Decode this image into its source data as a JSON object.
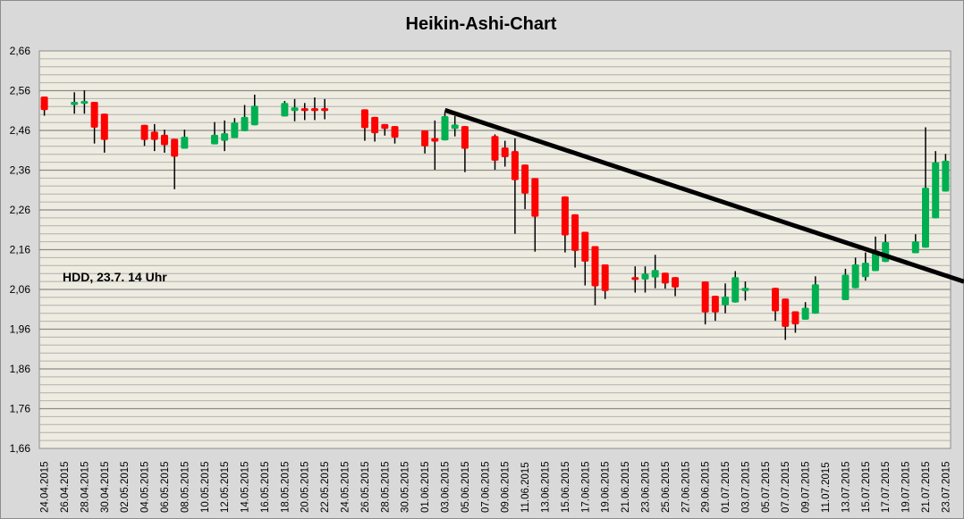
{
  "chart_data": {
    "type": "candlestick",
    "subtype": "heikin-ashi",
    "title": "Heikin-Ashi-Chart",
    "annotation": "HDD, 23.7. 14 Uhr",
    "xlabel": "",
    "ylabel": "",
    "ylim": [
      1.66,
      2.66
    ],
    "yticks": [
      "2,66",
      "2,56",
      "2,46",
      "2,36",
      "2,26",
      "2,16",
      "2,06",
      "1,96",
      "1,86",
      "1,76",
      "1,66"
    ],
    "ytick_values": [
      2.66,
      2.56,
      2.46,
      2.36,
      2.26,
      2.16,
      2.06,
      1.96,
      1.86,
      1.76,
      1.66
    ],
    "minor_grid_step": 0.02,
    "grid": true,
    "x_range": [
      "24.04.2015",
      "23.07.2015"
    ],
    "xticks": [
      "24.04.2015",
      "26.04.2015",
      "28.04.2015",
      "30.04.2015",
      "02.05.2015",
      "04.05.2015",
      "06.05.2015",
      "08.05.2015",
      "10.05.2015",
      "12.05.2015",
      "14.05.2015",
      "16.05.2015",
      "18.05.2015",
      "20.05.2015",
      "22.05.2015",
      "24.05.2015",
      "26.05.2015",
      "28.05.2015",
      "30.05.2015",
      "01.06.2015",
      "03.06.2015",
      "05.06.2015",
      "07.06.2015",
      "09.06.2015",
      "11.06.2015",
      "13.06.2015",
      "15.06.2015",
      "17.06.2015",
      "19.06.2015",
      "21.06.2015",
      "23.06.2015",
      "25.06.2015",
      "27.06.2015",
      "29.06.2015",
      "01.07.2015",
      "03.07.2015",
      "05.07.2015",
      "07.07.2015",
      "09.07.2015",
      "11.07.2015",
      "13.07.2015",
      "15.07.2015",
      "17.07.2015",
      "19.07.2015",
      "21.07.2015",
      "23.07.2015"
    ],
    "columns": [
      "date",
      "open",
      "high",
      "low",
      "close"
    ],
    "candles": [
      [
        "24.04.2015",
        2.545,
        2.545,
        2.497,
        2.511
      ],
      [
        "27.04.2015",
        2.524,
        2.556,
        2.502,
        2.532
      ],
      [
        "28.04.2015",
        2.527,
        2.561,
        2.502,
        2.534
      ],
      [
        "29.04.2015",
        2.532,
        2.532,
        2.427,
        2.467
      ],
      [
        "30.04.2015",
        2.502,
        2.502,
        2.404,
        2.436
      ],
      [
        "04.05.2015",
        2.474,
        2.474,
        2.421,
        2.436
      ],
      [
        "05.05.2015",
        2.457,
        2.476,
        2.408,
        2.436
      ],
      [
        "06.05.2015",
        2.449,
        2.462,
        2.404,
        2.423
      ],
      [
        "07.05.2015",
        2.439,
        2.439,
        2.312,
        2.394
      ],
      [
        "08.05.2015",
        2.414,
        2.462,
        2.414,
        2.444
      ],
      [
        "11.05.2015",
        2.425,
        2.481,
        2.425,
        2.449
      ],
      [
        "12.05.2015",
        2.434,
        2.485,
        2.408,
        2.453
      ],
      [
        "13.05.2015",
        2.441,
        2.491,
        2.441,
        2.48
      ],
      [
        "14.05.2015",
        2.458,
        2.524,
        2.458,
        2.494
      ],
      [
        "15.05.2015",
        2.473,
        2.55,
        2.473,
        2.522
      ],
      [
        "18.05.2015",
        2.495,
        2.534,
        2.495,
        2.529
      ],
      [
        "19.05.2015",
        2.509,
        2.539,
        2.483,
        2.518
      ],
      [
        "20.05.2015",
        2.516,
        2.529,
        2.486,
        2.509
      ],
      [
        "21.05.2015",
        2.516,
        2.543,
        2.486,
        2.509
      ],
      [
        "22.05.2015",
        2.516,
        2.539,
        2.488,
        2.509
      ],
      [
        "26.05.2015",
        2.513,
        2.513,
        2.434,
        2.466
      ],
      [
        "27.05.2015",
        2.494,
        2.494,
        2.432,
        2.453
      ],
      [
        "28.05.2015",
        2.476,
        2.476,
        2.447,
        2.464
      ],
      [
        "29.05.2015",
        2.471,
        2.471,
        2.427,
        2.442
      ],
      [
        "01.06.2015",
        2.46,
        2.46,
        2.402,
        2.42
      ],
      [
        "02.06.2015",
        2.441,
        2.485,
        2.361,
        2.432
      ],
      [
        "03.06.2015",
        2.435,
        2.505,
        2.435,
        2.496
      ],
      [
        "04.06.2015",
        2.464,
        2.496,
        2.445,
        2.475
      ],
      [
        "05.06.2015",
        2.471,
        2.471,
        2.355,
        2.414
      ],
      [
        "08.06.2015",
        2.446,
        2.45,
        2.361,
        2.384
      ],
      [
        "09.06.2015",
        2.417,
        2.434,
        2.369,
        2.393
      ],
      [
        "10.06.2015",
        2.408,
        2.44,
        2.2,
        2.335
      ],
      [
        "11.06.2015",
        2.374,
        2.374,
        2.262,
        2.301
      ],
      [
        "12.06.2015",
        2.34,
        2.34,
        2.155,
        2.243
      ],
      [
        "15.06.2015",
        2.294,
        2.294,
        2.153,
        2.196
      ],
      [
        "16.06.2015",
        2.249,
        2.249,
        2.115,
        2.157
      ],
      [
        "17.06.2015",
        2.205,
        2.205,
        2.07,
        2.13
      ],
      [
        "18.06.2015",
        2.169,
        2.169,
        2.02,
        2.068
      ],
      [
        "19.06.2015",
        2.123,
        2.123,
        2.036,
        2.056
      ],
      [
        "22.06.2015",
        2.091,
        2.118,
        2.052,
        2.084
      ],
      [
        "23.06.2015",
        2.085,
        2.118,
        2.052,
        2.1
      ],
      [
        "24.06.2015",
        2.09,
        2.147,
        2.063,
        2.109
      ],
      [
        "25.06.2015",
        2.102,
        2.102,
        2.062,
        2.075
      ],
      [
        "26.06.2015",
        2.091,
        2.091,
        2.043,
        2.065
      ],
      [
        "29.06.2015",
        2.08,
        2.08,
        1.972,
        2.002
      ],
      [
        "30.06.2015",
        2.044,
        2.044,
        1.981,
        2.002
      ],
      [
        "01.07.2015",
        2.02,
        2.075,
        2.0,
        2.042
      ],
      [
        "02.07.2015",
        2.027,
        2.106,
        2.027,
        2.091
      ],
      [
        "03.07.2015",
        2.056,
        2.08,
        2.032,
        2.064
      ],
      [
        "06.07.2015",
        2.064,
        2.064,
        1.981,
        2.005
      ],
      [
        "07.07.2015",
        2.037,
        2.037,
        1.933,
        1.966
      ],
      [
        "08.07.2015",
        2.005,
        2.005,
        1.951,
        1.972
      ],
      [
        "09.07.2015",
        1.984,
        2.028,
        1.984,
        2.014
      ],
      [
        "10.07.2015",
        1.999,
        2.093,
        1.999,
        2.073
      ],
      [
        "13.07.2015",
        2.033,
        2.112,
        2.033,
        2.097
      ],
      [
        "14.07.2015",
        2.063,
        2.14,
        2.063,
        2.123
      ],
      [
        "15.07.2015",
        2.091,
        2.153,
        2.082,
        2.127
      ],
      [
        "16.07.2015",
        2.106,
        2.193,
        2.106,
        2.157
      ],
      [
        "17.07.2015",
        2.129,
        2.199,
        2.129,
        2.179
      ],
      [
        "20.07.2015",
        2.151,
        2.199,
        2.151,
        2.181
      ],
      [
        "21.07.2015",
        2.165,
        2.468,
        2.165,
        2.316
      ],
      [
        "22.07.2015",
        2.239,
        2.408,
        2.239,
        2.38
      ],
      [
        "23.07.2015",
        2.306,
        2.401,
        2.306,
        2.384
      ]
    ],
    "trendline": {
      "start": [
        "03.06.2015",
        2.511
      ],
      "end": [
        "23.07.2015",
        2.095
      ],
      "extends_right": true,
      "color": "#000000"
    },
    "colors": {
      "up": "#00b050",
      "down": "#ff0000",
      "wick": "#000000",
      "plot_background": "#eeebe1",
      "background": "#d9d9d9"
    }
  }
}
